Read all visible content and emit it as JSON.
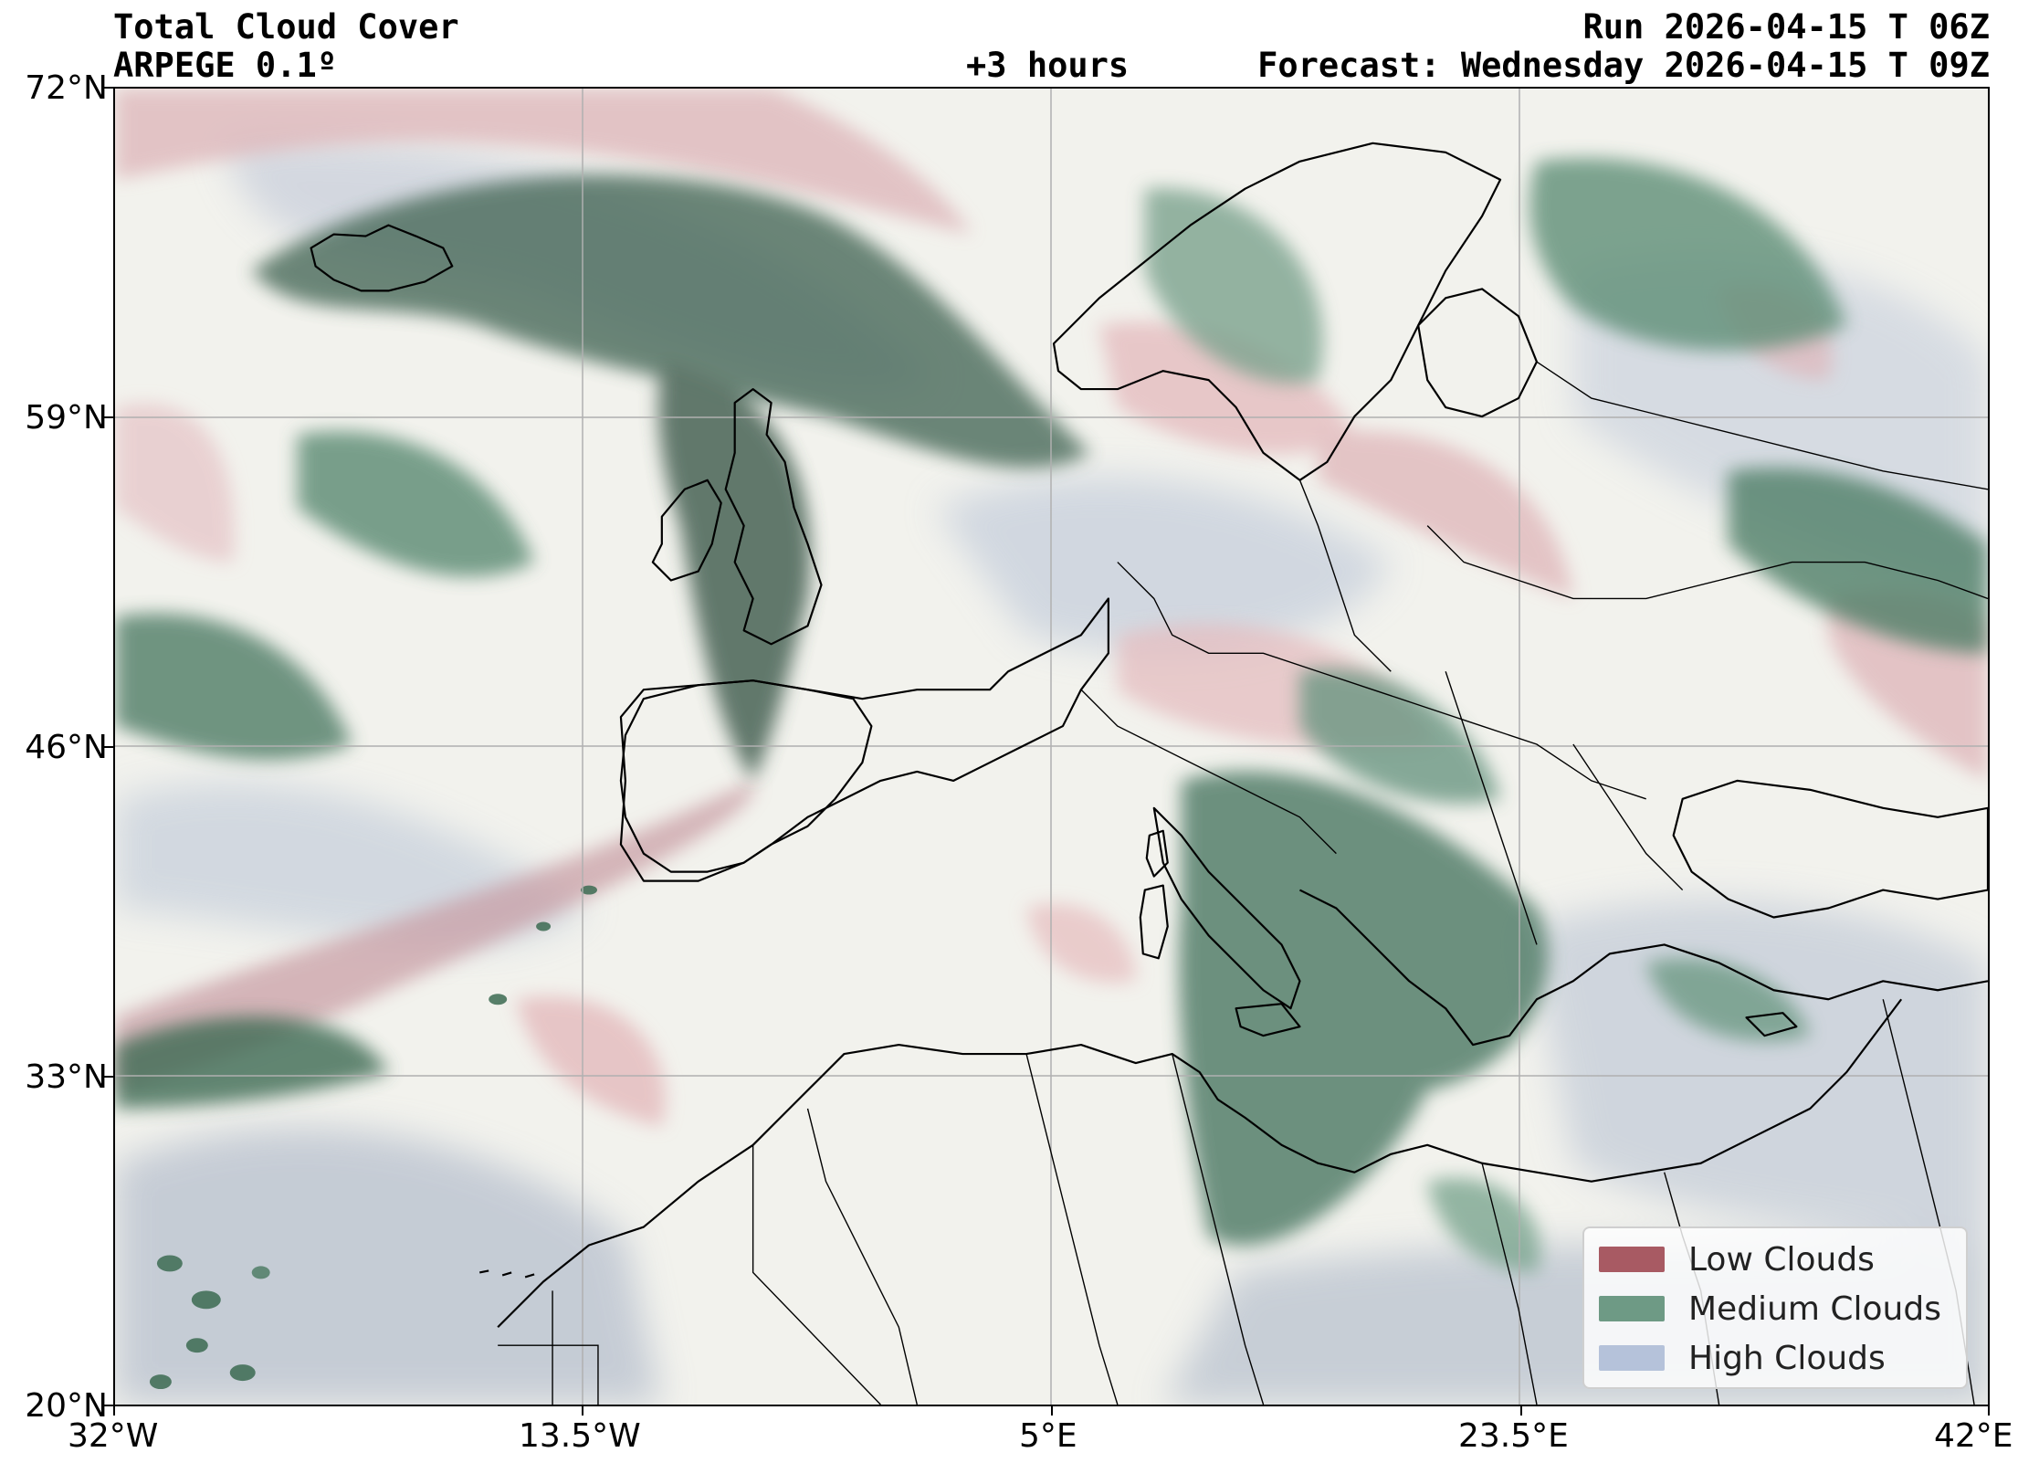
{
  "header": {
    "title": "Total Cloud Cover",
    "model": "ARPEGE 0.1º",
    "lead_time": "+3 hours",
    "run": "Run 2026-04-15 T 06Z",
    "forecast": "Forecast: Wednesday 2026-04-15 T 09Z"
  },
  "axes": {
    "lat_labels": [
      "72°N",
      "59°N",
      "46°N",
      "33°N",
      "20°N"
    ],
    "lon_labels": [
      "32°W",
      "13.5°W",
      "5°E",
      "23.5°E",
      "42°E"
    ],
    "lat_values": [
      72,
      59,
      46,
      33,
      20
    ],
    "lon_values": [
      -32,
      -13.5,
      5,
      23.5,
      42
    ],
    "grid": true
  },
  "legend": {
    "placement": "bottom-right",
    "items": [
      {
        "label": "Low Clouds",
        "color": "#a85a63"
      },
      {
        "label": "Medium Clouds",
        "color": "#6e9a85"
      },
      {
        "label": "High Clouds",
        "color": "#b5c2da"
      }
    ]
  },
  "colors": {
    "background": "#f2f2ed",
    "low": "#b46a72",
    "medium": "#3f7a5c",
    "dark_medium": "#3a4d44",
    "high": "#aebbd0",
    "coast": "#000000",
    "grid": "#b0b0b0"
  }
}
